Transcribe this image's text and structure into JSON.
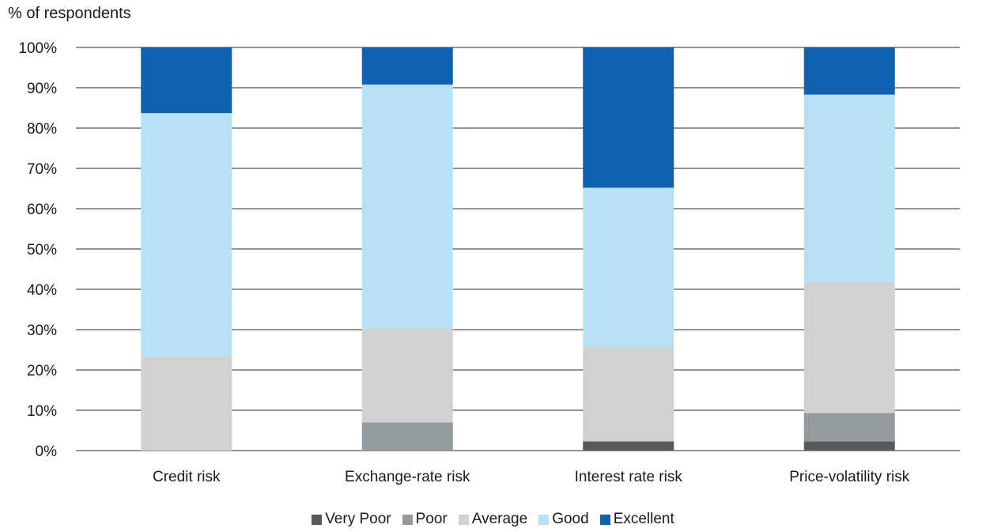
{
  "chart_data": {
    "type": "bar",
    "stacked": true,
    "ylabel": "% of respondents",
    "xlabel": "",
    "ylim": [
      0,
      100
    ],
    "y_ticks": [
      "0%",
      "10%",
      "20%",
      "30%",
      "40%",
      "50%",
      "60%",
      "70%",
      "80%",
      "90%",
      "100%"
    ],
    "grid": true,
    "legend_position": "bottom",
    "categories": [
      "Credit risk",
      "Exchange-rate risk",
      "Interest rate risk",
      "Price-volatility risk"
    ],
    "series": [
      {
        "name": "Very Poor",
        "color": "#58595b",
        "values": [
          0,
          0,
          2.3,
          2.3
        ]
      },
      {
        "name": "Poor",
        "color": "#939b9e",
        "values": [
          0,
          7.0,
          0,
          7.0
        ]
      },
      {
        "name": "Average",
        "color": "#d1d1d3",
        "values": [
          23.3,
          23.3,
          23.3,
          32.5
        ]
      },
      {
        "name": "Good",
        "color": "#b8e1f5",
        "values": [
          60.4,
          60.5,
          39.6,
          46.5
        ]
      },
      {
        "name": "Excellent",
        "color": "#1061b0",
        "values": [
          16.3,
          9.2,
          34.8,
          11.7
        ]
      }
    ]
  }
}
